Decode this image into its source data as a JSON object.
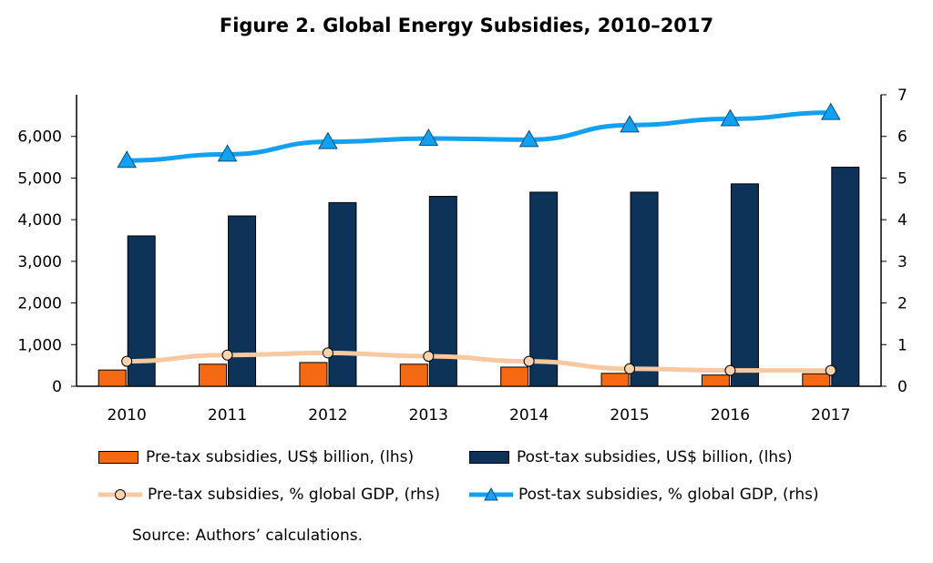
{
  "title": "Figure 2. Global Energy Subsidies, 2010–2017",
  "source": "Source: Authors’ calculations.",
  "chart_data": {
    "type": "bar",
    "categories": [
      "2010",
      "2011",
      "2012",
      "2013",
      "2014",
      "2015",
      "2016",
      "2017"
    ],
    "series": [
      {
        "name": "Pre-tax subsidies, US$ billion, (lhs)",
        "kind": "bar",
        "axis": "left",
        "color": "#F36A12",
        "values": [
          390,
          530,
          570,
          530,
          460,
          310,
          270,
          300
        ]
      },
      {
        "name": "Post-tax subsidies, US$ billion, (lhs)",
        "kind": "bar",
        "axis": "left",
        "color": "#0D3358",
        "values": [
          3610,
          4090,
          4410,
          4560,
          4660,
          4660,
          4860,
          5260
        ]
      },
      {
        "name": "Pre-tax subsidies, % global GDP, (rhs)",
        "kind": "line",
        "axis": "right",
        "color": "#F8C9A0",
        "marker": "circle",
        "values": [
          0.6,
          0.75,
          0.8,
          0.72,
          0.6,
          0.42,
          0.38,
          0.38
        ]
      },
      {
        "name": "Post-tax subsidies, % global GDP, (rhs)",
        "kind": "line",
        "axis": "right",
        "color": "#14A0F0",
        "marker": "triangle",
        "values": [
          5.42,
          5.57,
          5.87,
          5.95,
          5.92,
          6.27,
          6.42,
          6.57
        ]
      }
    ],
    "y_left": {
      "min": 0,
      "max": 7000,
      "ticks": [
        0,
        1000,
        2000,
        3000,
        4000,
        5000,
        6000
      ],
      "tick_labels": [
        "0",
        "1,000",
        "2,000",
        "3,000",
        "4,000",
        "5,000",
        "6,000"
      ]
    },
    "y_right": {
      "min": 0,
      "max": 7,
      "ticks": [
        0,
        1,
        2,
        3,
        4,
        5,
        6,
        7
      ],
      "tick_labels": [
        "0",
        "1",
        "2",
        "3",
        "4",
        "5",
        "6",
        "7"
      ]
    },
    "grid": false,
    "legend_position": "bottom"
  }
}
